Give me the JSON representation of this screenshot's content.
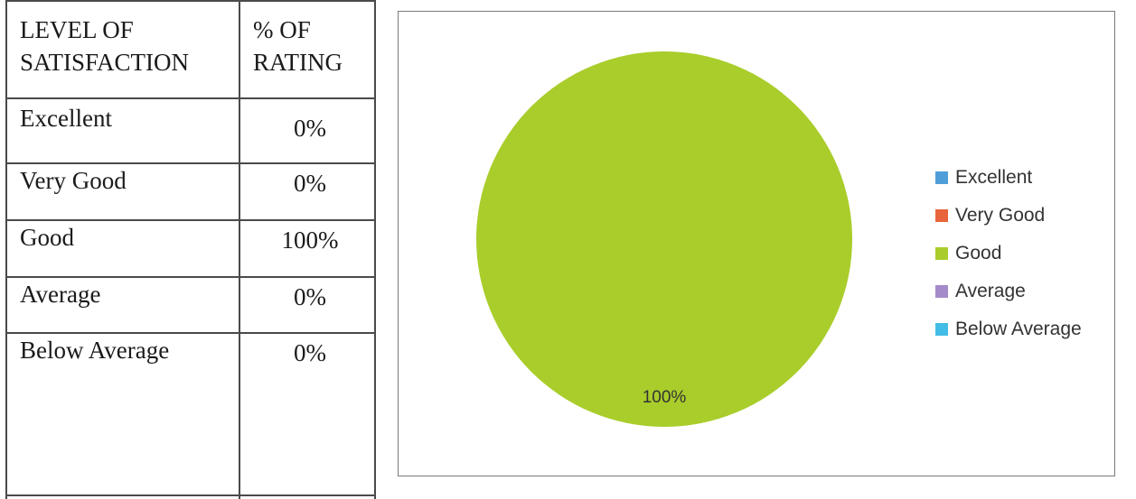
{
  "table": {
    "header": {
      "col1_line1": "LEVEL OF",
      "col1_line2": "SATISFACTION",
      "col2_line1": "% OF",
      "col2_line2": "RATING"
    },
    "rows": [
      {
        "label": "Excellent",
        "value": "0%"
      },
      {
        "label": "Very Good",
        "value": "0%"
      },
      {
        "label": "Good",
        "value": "100%"
      },
      {
        "label": "Average",
        "value": "0%"
      },
      {
        "label": "Below Average",
        "value": "0%"
      }
    ]
  },
  "chart_data": {
    "type": "pie",
    "categories": [
      "Excellent",
      "Very Good",
      "Good",
      "Average",
      "Below Average"
    ],
    "values": [
      0,
      0,
      100,
      0,
      0
    ],
    "colors": [
      "#4f9ed9",
      "#e8643c",
      "#a9cd2a",
      "#a58bc9",
      "#41bde6"
    ],
    "data_labels": [
      "",
      "",
      "100%",
      "",
      ""
    ],
    "legend_position": "right"
  }
}
